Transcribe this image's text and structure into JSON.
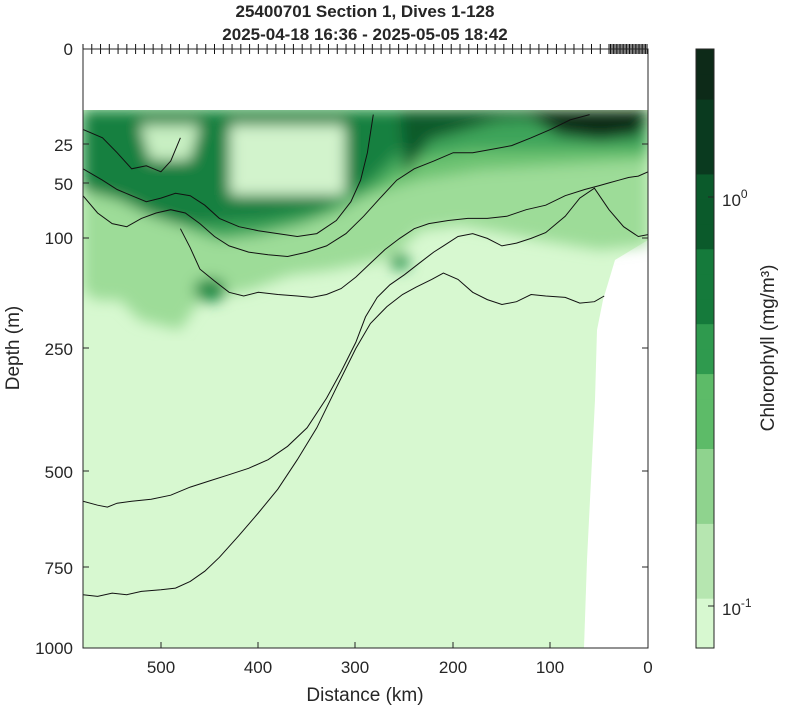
{
  "chart_data": {
    "type": "heatmap",
    "title": "25400701 Section 1, Dives 1-128",
    "subtitle": "2025-04-18 16:36 - 2025-05-05 18:42",
    "xlabel": "Distance (km)",
    "ylabel": "Depth (m)",
    "xlim": [
      580,
      0
    ],
    "x_direction": "reversed",
    "ylim": [
      1000,
      0
    ],
    "y_scale": "square-root depth",
    "x_ticks": [
      "500",
      "400",
      "300",
      "200",
      "100",
      "0"
    ],
    "y_ticks": [
      "0",
      "25",
      "50",
      "100",
      "250",
      "500",
      "750",
      "1000"
    ],
    "colorbar": {
      "label": "Chlorophyll (mg/m³)",
      "scale": "log",
      "range": [
        0.08,
        2.0
      ],
      "ticks": [
        {
          "label": "10",
          "exp": "0",
          "value": 1.0
        },
        {
          "label": "10",
          "exp": "-1",
          "value": 0.1
        }
      ],
      "colors": [
        "#d7f8d0",
        "#b6e6b0",
        "#8fd38e",
        "#5dbb68",
        "#2f9a4e",
        "#157a3b",
        "#0b5a2b",
        "#0a3a1f",
        "#0d2a18"
      ]
    },
    "density_contours": [
      {
        "level": 1,
        "points": [
          [
            580,
            18
          ],
          [
            560,
            22
          ],
          [
            545,
            30
          ],
          [
            530,
            40
          ],
          [
            515,
            38
          ],
          [
            500,
            42
          ],
          [
            490,
            35
          ],
          [
            480,
            22
          ]
        ]
      },
      {
        "level": 2,
        "points": [
          [
            580,
            40
          ],
          [
            560,
            48
          ],
          [
            545,
            55
          ],
          [
            530,
            60
          ],
          [
            515,
            65
          ],
          [
            500,
            62
          ],
          [
            485,
            58
          ],
          [
            470,
            60
          ],
          [
            455,
            68
          ],
          [
            440,
            80
          ],
          [
            420,
            88
          ],
          [
            400,
            92
          ],
          [
            380,
            95
          ],
          [
            360,
            98
          ],
          [
            340,
            95
          ],
          [
            320,
            82
          ],
          [
            305,
            65
          ],
          [
            295,
            48
          ],
          [
            288,
            30
          ],
          [
            282,
            12
          ]
        ]
      },
      {
        "level": 3,
        "points": [
          [
            580,
            60
          ],
          [
            565,
            75
          ],
          [
            550,
            85
          ],
          [
            535,
            88
          ],
          [
            520,
            80
          ],
          [
            505,
            75
          ],
          [
            490,
            72
          ],
          [
            475,
            75
          ],
          [
            460,
            85
          ],
          [
            445,
            98
          ],
          [
            430,
            108
          ],
          [
            410,
            115
          ],
          [
            390,
            118
          ],
          [
            370,
            120
          ],
          [
            350,
            115
          ],
          [
            330,
            108
          ],
          [
            310,
            95
          ],
          [
            292,
            78
          ],
          [
            275,
            62
          ],
          [
            258,
            48
          ],
          [
            240,
            40
          ],
          [
            220,
            35
          ],
          [
            200,
            30
          ],
          [
            180,
            30
          ],
          [
            160,
            28
          ],
          [
            140,
            26
          ],
          [
            120,
            22
          ],
          [
            100,
            18
          ],
          [
            80,
            14
          ],
          [
            60,
            12
          ]
        ]
      },
      {
        "level": 4,
        "points": [
          [
            480,
            90
          ],
          [
            470,
            110
          ],
          [
            460,
            135
          ],
          [
            445,
            150
          ],
          [
            430,
            165
          ],
          [
            415,
            170
          ],
          [
            400,
            165
          ],
          [
            380,
            168
          ],
          [
            360,
            170
          ],
          [
            345,
            172
          ],
          [
            330,
            168
          ],
          [
            315,
            160
          ],
          [
            300,
            145
          ],
          [
            285,
            128
          ],
          [
            270,
            112
          ],
          [
            255,
            100
          ],
          [
            240,
            90
          ],
          [
            225,
            85
          ],
          [
            205,
            82
          ],
          [
            185,
            80
          ],
          [
            165,
            80
          ],
          [
            145,
            78
          ],
          [
            125,
            72
          ],
          [
            105,
            68
          ],
          [
            85,
            60
          ],
          [
            65,
            55
          ],
          [
            50,
            52
          ],
          [
            40,
            50
          ],
          [
            30,
            48
          ],
          [
            20,
            46
          ],
          [
            10,
            45
          ],
          [
            0,
            42
          ]
        ]
      },
      {
        "level": 5,
        "points": [
          [
            580,
            570
          ],
          [
            565,
            580
          ],
          [
            555,
            585
          ],
          [
            545,
            575
          ],
          [
            530,
            570
          ],
          [
            510,
            565
          ],
          [
            490,
            555
          ],
          [
            470,
            535
          ],
          [
            450,
            520
          ],
          [
            430,
            505
          ],
          [
            410,
            490
          ],
          [
            390,
            470
          ],
          [
            370,
            440
          ],
          [
            350,
            400
          ],
          [
            330,
            340
          ],
          [
            315,
            290
          ],
          [
            300,
            240
          ],
          [
            290,
            200
          ],
          [
            278,
            172
          ],
          [
            265,
            155
          ],
          [
            250,
            142
          ],
          [
            235,
            128
          ],
          [
            220,
            115
          ],
          [
            210,
            108
          ],
          [
            195,
            98
          ],
          [
            180,
            95
          ],
          [
            165,
            100
          ],
          [
            150,
            108
          ],
          [
            135,
            105
          ],
          [
            120,
            100
          ],
          [
            105,
            94
          ],
          [
            85,
            78
          ],
          [
            70,
            62
          ],
          [
            55,
            54
          ],
          [
            40,
            72
          ],
          [
            25,
            88
          ],
          [
            10,
            98
          ],
          [
            0,
            96
          ]
        ]
      },
      {
        "level": 6,
        "points": [
          [
            580,
            830
          ],
          [
            565,
            835
          ],
          [
            550,
            825
          ],
          [
            535,
            830
          ],
          [
            520,
            820
          ],
          [
            500,
            815
          ],
          [
            485,
            810
          ],
          [
            470,
            790
          ],
          [
            455,
            760
          ],
          [
            440,
            720
          ],
          [
            420,
            660
          ],
          [
            400,
            600
          ],
          [
            380,
            540
          ],
          [
            360,
            470
          ],
          [
            340,
            400
          ],
          [
            320,
            320
          ],
          [
            300,
            250
          ],
          [
            285,
            210
          ],
          [
            268,
            185
          ],
          [
            252,
            168
          ],
          [
            238,
            158
          ],
          [
            222,
            148
          ],
          [
            210,
            140
          ],
          [
            195,
            148
          ],
          [
            180,
            165
          ],
          [
            165,
            175
          ],
          [
            150,
            182
          ],
          [
            135,
            178
          ],
          [
            120,
            168
          ],
          [
            105,
            170
          ],
          [
            85,
            172
          ],
          [
            70,
            180
          ],
          [
            55,
            178
          ],
          [
            45,
            170
          ]
        ]
      }
    ]
  }
}
